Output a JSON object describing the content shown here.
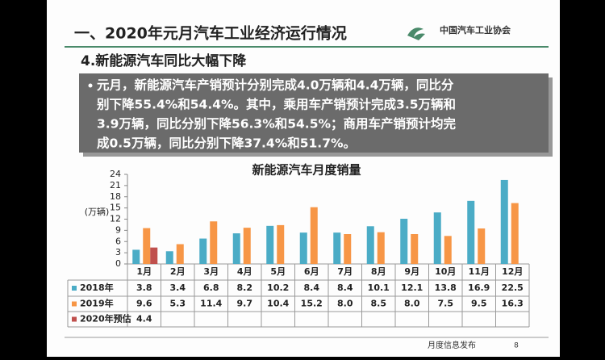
{
  "header": {
    "title": "一、2020年元月汽车工业经济运行情况",
    "logo": "中国汽车工业协会",
    "subtitle": "4.新能源汽车同比大幅下降"
  },
  "bullet": {
    "lines": [
      "元月，新能源汽车产销预计分别完成4.0万辆和4.4万辆，同比分",
      "别下降55.4%和54.4%。其中，乘用车产销预计完成3.5万辆和",
      "3.9万辆，同比分别下降56.3%和54.5%；商用车产销预计均完",
      "成0.5万辆，同比分别下降37.4%和51.7%。"
    ]
  },
  "footer": {
    "text": "月度信息发布",
    "page": "8"
  },
  "chart_data": {
    "type": "bar",
    "title": "新能源汽车月度销量",
    "y_label": "(万辆)",
    "categories": [
      "1月",
      "2月",
      "3月",
      "4月",
      "5月",
      "6月",
      "7月",
      "8月",
      "9月",
      "10月",
      "11月",
      "12月"
    ],
    "series": [
      {
        "name": "2018年",
        "color": "#4bacc6",
        "values": [
          3.8,
          3.4,
          6.8,
          8.2,
          10.2,
          8.4,
          8.4,
          10.1,
          12.1,
          13.8,
          16.9,
          22.5
        ]
      },
      {
        "name": "2019年",
        "color": "#f79646",
        "values": [
          9.6,
          5.3,
          11.4,
          9.7,
          10.4,
          15.2,
          8.0,
          8.5,
          8.0,
          7.5,
          9.5,
          16.3
        ],
        "value_labels": [
          "9.6",
          "5.3",
          "11.4",
          "9.7",
          "10.4",
          "15.2",
          "8.0",
          "8.5",
          "8.0",
          "7.5",
          "9.5",
          "16.3"
        ]
      },
      {
        "name": "2020年预估",
        "color": "#c0504d",
        "values": [
          4.4,
          null,
          null,
          null,
          null,
          null,
          null,
          null,
          null,
          null,
          null,
          null
        ]
      }
    ],
    "ylim": [
      0,
      24
    ],
    "yticks": [
      0,
      3,
      6,
      9,
      12,
      15,
      18,
      21,
      24
    ]
  }
}
